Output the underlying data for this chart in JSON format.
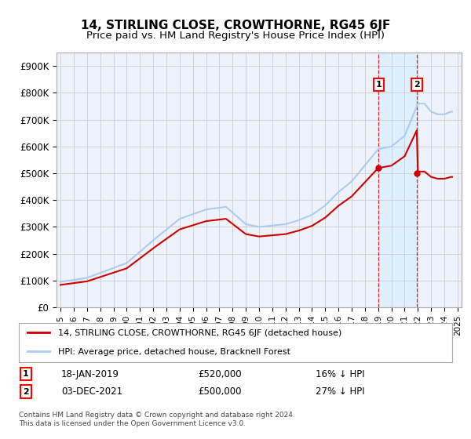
{
  "title": "14, STIRLING CLOSE, CROWTHORNE, RG45 6JF",
  "subtitle": "Price paid vs. HM Land Registry's House Price Index (HPI)",
  "ylim": [
    0,
    950000
  ],
  "yticks": [
    0,
    100000,
    200000,
    300000,
    400000,
    500000,
    600000,
    700000,
    800000,
    900000
  ],
  "ytick_labels": [
    "£0",
    "£100K",
    "£200K",
    "£300K",
    "£400K",
    "£500K",
    "£600K",
    "£700K",
    "£800K",
    "£900K"
  ],
  "hpi_color": "#aaccee",
  "price_color": "#CC0000",
  "sale1_year": 2019.04,
  "sale1_price": 520000,
  "sale2_year": 2021.92,
  "sale2_price": 500000,
  "legend_price_label": "14, STIRLING CLOSE, CROWTHORNE, RG45 6JF (detached house)",
  "legend_hpi_label": "HPI: Average price, detached house, Bracknell Forest",
  "ann1_text": "18-JAN-2019",
  "ann1_price": "£520,000",
  "ann1_pct": "16% ↓ HPI",
  "ann2_text": "03-DEC-2021",
  "ann2_price": "£500,000",
  "ann2_pct": "27% ↓ HPI",
  "footer": "Contains HM Land Registry data © Crown copyright and database right 2024.\nThis data is licensed under the Open Government Licence v3.0.",
  "bg_color": "#ffffff",
  "plot_bg": "#eef3fb",
  "grid_color": "#cccccc",
  "title_fontsize": 11,
  "subtitle_fontsize": 9.5,
  "shade_color": "#ddeeff"
}
